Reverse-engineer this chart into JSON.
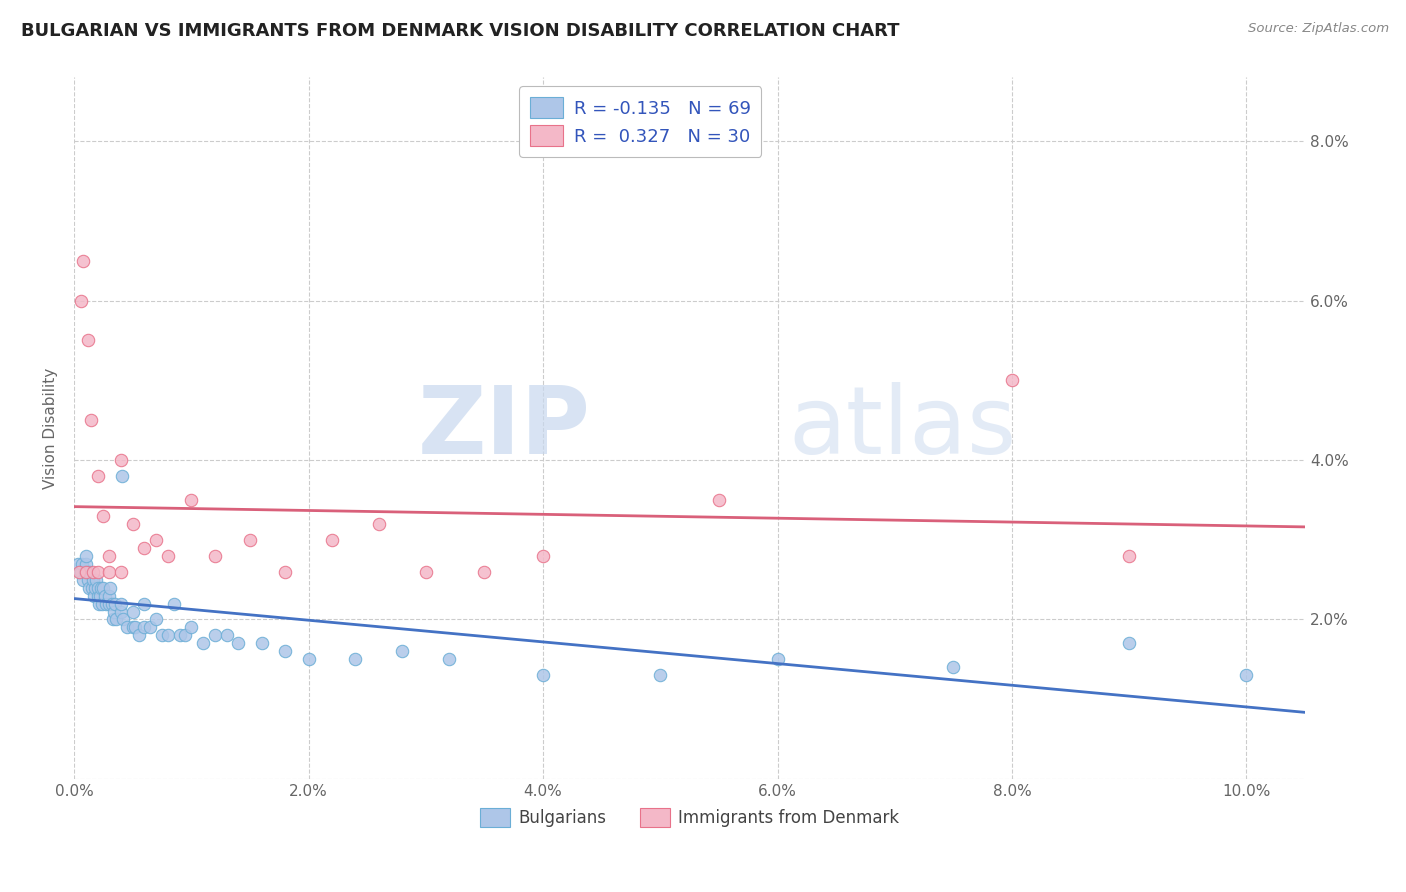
{
  "title": "BULGARIAN VS IMMIGRANTS FROM DENMARK VISION DISABILITY CORRELATION CHART",
  "source": "Source: ZipAtlas.com",
  "ylabel": "Vision Disability",
  "xlim": [
    0.0,
    0.105
  ],
  "ylim": [
    0.0,
    0.088
  ],
  "background_color": "#ffffff",
  "grid_color": "#cccccc",
  "blue_fill_color": "#aec6e8",
  "pink_fill_color": "#f4b8c8",
  "blue_edge_color": "#6baed6",
  "pink_edge_color": "#e8728a",
  "blue_line_color": "#4472c4",
  "pink_line_color": "#d9607a",
  "legend_label1": "Bulgarians",
  "legend_label2": "Immigrants from Denmark",
  "watermark_zip": "ZIP",
  "watermark_atlas": "atlas",
  "blue_r": "-0.135",
  "blue_n": "69",
  "pink_r": "0.327",
  "pink_n": "30",
  "blue_points_x": [
    0.0003,
    0.0005,
    0.0006,
    0.0007,
    0.0008,
    0.0009,
    0.001,
    0.001,
    0.001,
    0.0012,
    0.0013,
    0.0013,
    0.0015,
    0.0016,
    0.0017,
    0.0018,
    0.0019,
    0.002,
    0.002,
    0.0021,
    0.0022,
    0.0023,
    0.0024,
    0.0025,
    0.0026,
    0.0027,
    0.003,
    0.003,
    0.0031,
    0.0032,
    0.0033,
    0.0034,
    0.0035,
    0.0036,
    0.004,
    0.004,
    0.0041,
    0.0042,
    0.0045,
    0.005,
    0.005,
    0.0052,
    0.0055,
    0.006,
    0.006,
    0.0065,
    0.007,
    0.0075,
    0.008,
    0.0085,
    0.009,
    0.0095,
    0.01,
    0.011,
    0.012,
    0.013,
    0.014,
    0.016,
    0.018,
    0.02,
    0.024,
    0.028,
    0.032,
    0.04,
    0.05,
    0.06,
    0.075,
    0.09,
    0.1
  ],
  "blue_points_y": [
    0.027,
    0.026,
    0.026,
    0.027,
    0.025,
    0.026,
    0.026,
    0.027,
    0.028,
    0.025,
    0.024,
    0.026,
    0.024,
    0.025,
    0.023,
    0.024,
    0.025,
    0.023,
    0.024,
    0.022,
    0.023,
    0.024,
    0.022,
    0.024,
    0.023,
    0.022,
    0.022,
    0.023,
    0.024,
    0.022,
    0.02,
    0.021,
    0.022,
    0.02,
    0.021,
    0.022,
    0.038,
    0.02,
    0.019,
    0.019,
    0.021,
    0.019,
    0.018,
    0.022,
    0.019,
    0.019,
    0.02,
    0.018,
    0.018,
    0.022,
    0.018,
    0.018,
    0.019,
    0.017,
    0.018,
    0.018,
    0.017,
    0.017,
    0.016,
    0.015,
    0.015,
    0.016,
    0.015,
    0.013,
    0.013,
    0.015,
    0.014,
    0.017,
    0.013
  ],
  "pink_points_x": [
    0.0004,
    0.0006,
    0.0008,
    0.001,
    0.0012,
    0.0014,
    0.0016,
    0.002,
    0.002,
    0.0025,
    0.003,
    0.003,
    0.004,
    0.004,
    0.005,
    0.006,
    0.007,
    0.008,
    0.01,
    0.012,
    0.015,
    0.018,
    0.022,
    0.026,
    0.03,
    0.035,
    0.04,
    0.055,
    0.08,
    0.09
  ],
  "pink_points_y": [
    0.026,
    0.06,
    0.065,
    0.026,
    0.055,
    0.045,
    0.026,
    0.038,
    0.026,
    0.033,
    0.028,
    0.026,
    0.026,
    0.04,
    0.032,
    0.029,
    0.03,
    0.028,
    0.035,
    0.028,
    0.03,
    0.026,
    0.03,
    0.032,
    0.026,
    0.026,
    0.028,
    0.035,
    0.05,
    0.028
  ]
}
